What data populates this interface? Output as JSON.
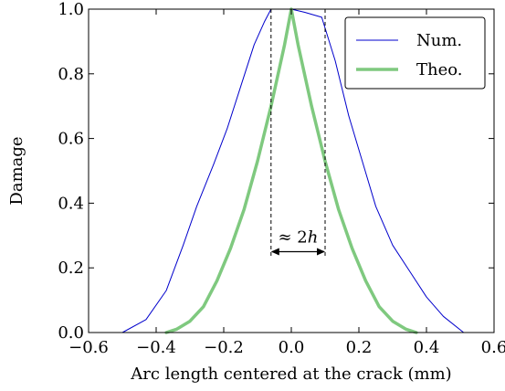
{
  "chart_data": {
    "type": "line",
    "xlabel": "Arc length centered at the crack (mm)",
    "ylabel": "Damage",
    "xlim": [
      -0.6,
      0.6
    ],
    "ylim": [
      0.0,
      1.0
    ],
    "x_ticks": [
      "−0.6",
      "−0.4",
      "−0.2",
      "0.0",
      "0.2",
      "0.4",
      "0.6"
    ],
    "y_ticks": [
      "0.0",
      "0.2",
      "0.4",
      "0.6",
      "0.8",
      "1.0"
    ],
    "grid": false,
    "legend_position": "top-right",
    "series": [
      {
        "name": "Num.",
        "color": "#0000cc",
        "style": "thin",
        "x": [
          -0.5,
          -0.43,
          -0.37,
          -0.32,
          -0.28,
          -0.23,
          -0.19,
          -0.15,
          -0.11,
          -0.08,
          -0.06,
          -0.03,
          0.0,
          0.04,
          0.09,
          0.13,
          0.17,
          0.21,
          0.25,
          0.3,
          0.35,
          0.4,
          0.45,
          0.51
        ],
        "y": [
          0.0,
          0.04,
          0.13,
          0.27,
          0.39,
          0.52,
          0.63,
          0.76,
          0.89,
          0.96,
          1.0,
          1.0,
          1.0,
          0.99,
          0.975,
          0.84,
          0.67,
          0.53,
          0.39,
          0.27,
          0.19,
          0.11,
          0.05,
          0.0
        ]
      },
      {
        "name": "Theo.",
        "color": "#7fc97f",
        "style": "thick",
        "x": [
          -0.37,
          -0.34,
          -0.3,
          -0.26,
          -0.22,
          -0.18,
          -0.14,
          -0.1,
          -0.06,
          -0.02,
          0.0,
          0.02,
          0.06,
          0.1,
          0.14,
          0.18,
          0.22,
          0.26,
          0.3,
          0.34,
          0.37
        ],
        "y": [
          0.0,
          0.01,
          0.035,
          0.08,
          0.16,
          0.26,
          0.38,
          0.53,
          0.7,
          0.89,
          1.0,
          0.89,
          0.7,
          0.53,
          0.38,
          0.26,
          0.16,
          0.08,
          0.035,
          0.01,
          0.0
        ]
      }
    ],
    "annotations": {
      "width_label_prefix": "≈ 2",
      "width_label_var": "h",
      "vlines_x": [
        -0.06,
        0.1
      ],
      "arrow_y": 0.25
    }
  }
}
